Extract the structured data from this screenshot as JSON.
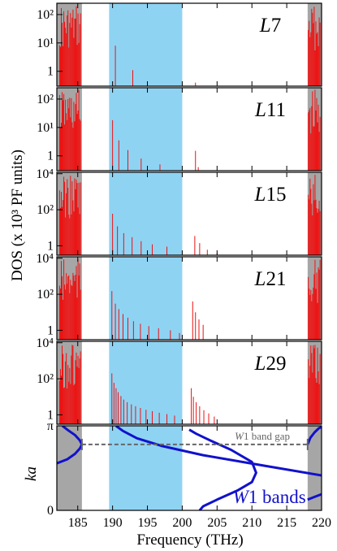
{
  "colors": {
    "gap_fill": "#8fd3f3",
    "edge_fill": "#a6a6a6",
    "dos_line": "#ee1111",
    "band_line": "#1111cc",
    "gap_marker": "#666666",
    "frame": "#000000"
  },
  "chart_data": {
    "type": "line",
    "xlabel": "Frequency (THz)",
    "ylabel": "DOS (x 10³ PF units)",
    "xlim": [
      182,
      220
    ],
    "x_ticks": [
      185,
      190,
      195,
      200,
      205,
      210,
      215,
      220
    ],
    "highlight": {
      "x_range": [
        189.5,
        200
      ],
      "color": "#8fd3f3"
    },
    "edge_regions": [
      {
        "x_range": [
          182,
          185.6
        ]
      },
      {
        "x_range": [
          218,
          220
        ]
      }
    ],
    "panels": [
      {
        "label": "L7",
        "label_italic": "L",
        "label_rest": "7",
        "scale": "log",
        "ylim": [
          0.3,
          250
        ],
        "y_ticks": [
          {
            "v": 1,
            "t": "1"
          },
          {
            "v": 10,
            "t": "10¹"
          },
          {
            "v": 100,
            "t": "10²"
          }
        ],
        "edge_peaks": true,
        "peaks": [
          [
            190.4,
            8
          ],
          [
            192.9,
            1.1
          ],
          [
            201.9,
            0.4
          ]
        ]
      },
      {
        "label": "L11",
        "label_italic": "L",
        "label_rest": "11",
        "scale": "log",
        "ylim": [
          0.3,
          250
        ],
        "y_ticks": [
          {
            "v": 1,
            "t": "1"
          },
          {
            "v": 10,
            "t": "10¹"
          },
          {
            "v": 100,
            "t": "10²"
          }
        ],
        "edge_peaks": true,
        "peaks": [
          [
            190.0,
            18
          ],
          [
            190.9,
            3.5
          ],
          [
            192.2,
            1.6
          ],
          [
            194.1,
            0.8
          ],
          [
            196.8,
            0.5
          ],
          [
            201.9,
            1.5
          ],
          [
            202.3,
            0.4
          ]
        ]
      },
      {
        "label": "L15",
        "label_italic": "L",
        "label_rest": "15",
        "scale": "log",
        "ylim": [
          0.3,
          12000
        ],
        "y_ticks": [
          {
            "v": 1,
            "t": "1"
          },
          {
            "v": 100,
            "t": "10²"
          },
          {
            "v": 10000,
            "t": "10⁴"
          }
        ],
        "edge_peaks": true,
        "peaks": [
          [
            190.0,
            60
          ],
          [
            190.7,
            12
          ],
          [
            191.6,
            5
          ],
          [
            192.8,
            3
          ],
          [
            194.1,
            1.8
          ],
          [
            195.7,
            1.2
          ],
          [
            197.8,
            0.9
          ],
          [
            201.8,
            3.5
          ],
          [
            202.5,
            1.4
          ],
          [
            203.6,
            0.6
          ],
          [
            205.0,
            0.4
          ]
        ]
      },
      {
        "label": "L21",
        "label_italic": "L",
        "label_rest": "21",
        "scale": "log",
        "ylim": [
          0.3,
          12000
        ],
        "y_ticks": [
          {
            "v": 1,
            "t": "1"
          },
          {
            "v": 100,
            "t": "10²"
          },
          {
            "v": 10000,
            "t": "10⁴"
          }
        ],
        "edge_peaks": true,
        "peaks": [
          [
            189.9,
            150
          ],
          [
            190.4,
            30
          ],
          [
            190.9,
            15
          ],
          [
            191.5,
            8
          ],
          [
            192.2,
            5
          ],
          [
            193.0,
            3.2
          ],
          [
            194.0,
            2.3
          ],
          [
            195.2,
            1.7
          ],
          [
            196.6,
            1.3
          ],
          [
            198.3,
            1.0
          ],
          [
            199.6,
            0.7
          ],
          [
            201.5,
            40
          ],
          [
            201.9,
            10
          ],
          [
            202.4,
            4
          ],
          [
            203.0,
            2
          ]
        ]
      },
      {
        "label": "L29",
        "label_italic": "L",
        "label_rest": "29",
        "scale": "log",
        "ylim": [
          0.3,
          12000
        ],
        "y_ticks": [
          {
            "v": 1,
            "t": "1"
          },
          {
            "v": 100,
            "t": "10²"
          },
          {
            "v": 10000,
            "t": "10⁴"
          }
        ],
        "edge_peaks": true,
        "peaks": [
          [
            189.9,
            200
          ],
          [
            190.2,
            60
          ],
          [
            190.5,
            30
          ],
          [
            190.8,
            18
          ],
          [
            191.2,
            11
          ],
          [
            191.6,
            7
          ],
          [
            192.1,
            5
          ],
          [
            192.7,
            3.8
          ],
          [
            193.3,
            3
          ],
          [
            194.0,
            2.4
          ],
          [
            194.8,
            1.9
          ],
          [
            195.7,
            1.6
          ],
          [
            196.7,
            1.3
          ],
          [
            197.8,
            1.1
          ],
          [
            198.9,
            0.9
          ],
          [
            201.3,
            30
          ],
          [
            201.6,
            10
          ],
          [
            202.0,
            5
          ],
          [
            202.5,
            3
          ],
          [
            203.1,
            1.8
          ],
          [
            203.8,
            1.2
          ],
          [
            204.6,
            0.8
          ]
        ]
      }
    ],
    "band_panel": {
      "ylabel": "ka",
      "ylim": [
        0,
        3.1416
      ],
      "y_ticks": [
        {
          "v": 0,
          "t": "0"
        },
        {
          "v": 3.1416,
          "t": "π"
        }
      ],
      "band_gap": {
        "x_range": [
          185.6,
          218
        ],
        "y": 2.45,
        "label": "W1 band gap",
        "label_italic": "W",
        "label_rest": "1 band gap"
      },
      "series_label": {
        "full": "W1 bands",
        "italic": "W",
        "rest": "1 bands"
      },
      "bands": [
        [
          [
            182.0,
            1.75
          ],
          [
            183.5,
            1.9
          ],
          [
            184.6,
            2.1
          ],
          [
            185.3,
            2.3
          ],
          [
            185.6,
            2.45
          ],
          [
            185.3,
            2.6
          ],
          [
            184.6,
            2.8
          ],
          [
            183.6,
            2.98
          ],
          [
            182.8,
            3.14
          ]
        ],
        [
          [
            190.5,
            3.14
          ],
          [
            191.5,
            2.95
          ],
          [
            193.5,
            2.68
          ],
          [
            197.0,
            2.4
          ],
          [
            203.0,
            2.05
          ],
          [
            212.0,
            1.65
          ],
          [
            220.0,
            1.3
          ]
        ],
        [
          [
            201.0,
            3.0
          ],
          [
            202.0,
            2.85
          ],
          [
            204.0,
            2.6
          ],
          [
            207.0,
            2.25
          ],
          [
            210.0,
            1.8
          ],
          [
            210.6,
            1.4
          ],
          [
            210.0,
            1.05
          ],
          [
            208.0,
            0.75
          ],
          [
            205.0,
            0.4
          ],
          [
            203.0,
            0.15
          ],
          [
            202.5,
            0.0
          ]
        ],
        [
          [
            218.0,
            2.45
          ],
          [
            218.4,
            2.7
          ],
          [
            219.0,
            2.9
          ],
          [
            219.6,
            3.05
          ],
          [
            220.0,
            3.1
          ]
        ],
        [
          [
            218.0,
            0.4
          ],
          [
            219.0,
            0.5
          ],
          [
            220.0,
            0.6
          ]
        ]
      ]
    }
  }
}
